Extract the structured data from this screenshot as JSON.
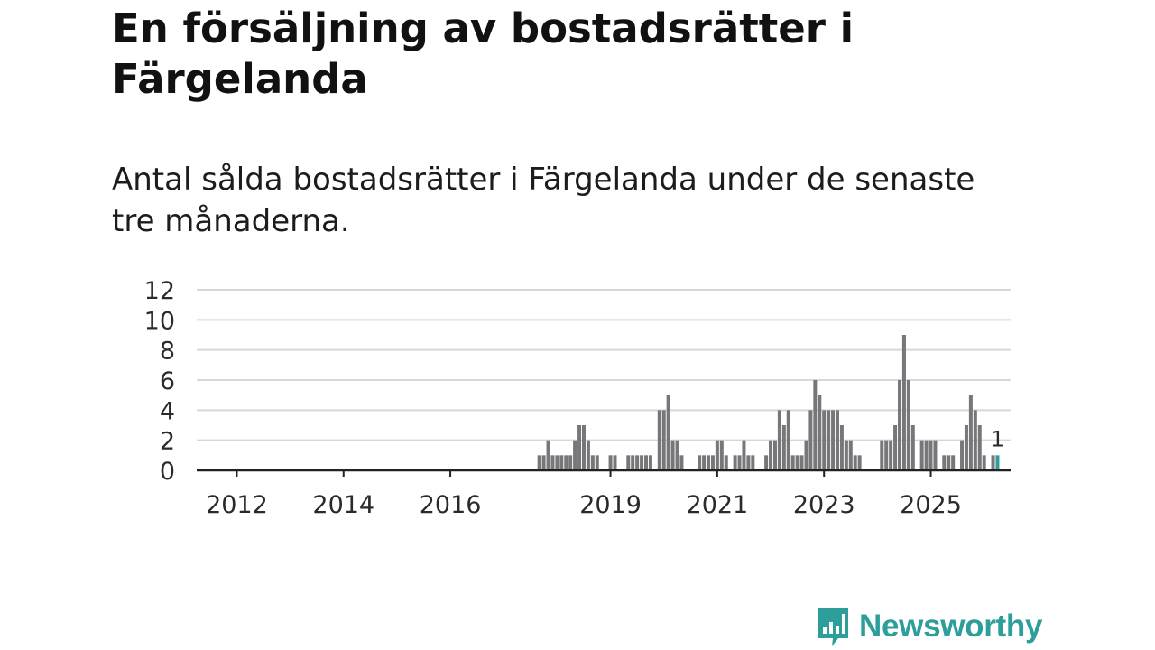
{
  "title": "En försäljning av bostadsrätter i Färgelanda",
  "subtitle": "Antal sålda bostadsrätter i Färgelanda under de senaste tre månaderna.",
  "logo": {
    "name": "Newsworthy",
    "color": "#2e9e9a"
  },
  "chart_data": {
    "type": "bar",
    "title": "",
    "xlabel": "",
    "ylabel": "",
    "ylim": [
      0,
      12
    ],
    "yticks": [
      "0",
      "2",
      "4",
      "6",
      "8",
      "10",
      "12"
    ],
    "xtick_labels": [
      "2012",
      "2014",
      "2016",
      "2019",
      "2021",
      "2023",
      "2025"
    ],
    "bar_color": "#76767b",
    "highlight_color": "#2e9e9a",
    "grid": true,
    "last_value_label": "1",
    "series": [
      {
        "name": "Antal sålda bostadsrätter",
        "start": "2011-05",
        "frequency": "monthly",
        "values": [
          0,
          0,
          0,
          0,
          0,
          0,
          0,
          0,
          0,
          0,
          0,
          0,
          0,
          0,
          0,
          0,
          0,
          0,
          0,
          0,
          0,
          0,
          0,
          0,
          0,
          0,
          0,
          0,
          0,
          0,
          0,
          0,
          0,
          0,
          0,
          0,
          0,
          0,
          0,
          0,
          0,
          0,
          0,
          0,
          0,
          0,
          0,
          0,
          0,
          0,
          0,
          0,
          0,
          0,
          0,
          0,
          0,
          0,
          0,
          0,
          0,
          0,
          0,
          0,
          0,
          0,
          0,
          0,
          0,
          0,
          0,
          0,
          0,
          0,
          0,
          0,
          1,
          1,
          2,
          1,
          1,
          1,
          1,
          1,
          2,
          3,
          3,
          2,
          1,
          1,
          0,
          0,
          1,
          1,
          0,
          0,
          1,
          1,
          1,
          1,
          1,
          1,
          0,
          4,
          4,
          5,
          2,
          2,
          1,
          0,
          0,
          0,
          1,
          1,
          1,
          1,
          2,
          2,
          1,
          0,
          1,
          1,
          2,
          1,
          1,
          0,
          0,
          1,
          2,
          2,
          4,
          3,
          4,
          1,
          1,
          1,
          2,
          4,
          6,
          5,
          4,
          4,
          4,
          4,
          3,
          2,
          2,
          1,
          1,
          0,
          0,
          0,
          0,
          2,
          2,
          2,
          3,
          6,
          9,
          6,
          3,
          0,
          2,
          2,
          2,
          2,
          0,
          1,
          1,
          1,
          0,
          2,
          3,
          5,
          4,
          3,
          1,
          0,
          1,
          1
        ]
      }
    ]
  }
}
